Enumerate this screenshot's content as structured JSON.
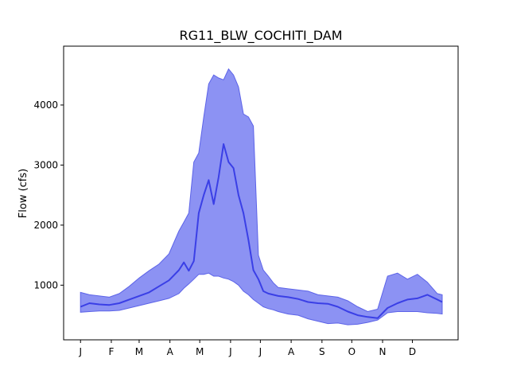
{
  "chart_data": {
    "type": "area",
    "title": "RG11_BLW_COCHITI_DAM",
    "xlabel": "",
    "ylabel": "Flow (cfs)",
    "x_tick_labels": [
      "J",
      "F",
      "M",
      "A",
      "M",
      "J",
      "J",
      "A",
      "S",
      "O",
      "N",
      "D"
    ],
    "x_tick_days": [
      1,
      32,
      60,
      91,
      121,
      152,
      182,
      213,
      244,
      274,
      305,
      335
    ],
    "y_ticks": [
      1000,
      2000,
      3000,
      4000
    ],
    "xlim": [
      -16,
      381
    ],
    "ylim": [
      90,
      4980
    ],
    "grid": false,
    "legend": "none",
    "colors": {
      "band": "#6b73f0",
      "band_edge": "#5c63e8",
      "line": "#3a3fe6"
    },
    "series": [
      {
        "role": "band",
        "x": [
          1,
          10,
          20,
          30,
          40,
          50,
          60,
          70,
          80,
          90,
          100,
          105,
          110,
          115,
          120,
          125,
          130,
          135,
          140,
          145,
          150,
          155,
          160,
          165,
          170,
          175,
          180,
          185,
          190,
          195,
          200,
          210,
          220,
          230,
          240,
          250,
          260,
          270,
          280,
          290,
          300,
          310,
          320,
          330,
          340,
          350,
          360,
          365
        ],
        "upper": [
          880,
          840,
          820,
          800,
          860,
          980,
          1120,
          1240,
          1350,
          1520,
          1900,
          2050,
          2200,
          3050,
          3200,
          3800,
          4350,
          4500,
          4450,
          4420,
          4600,
          4500,
          4300,
          3850,
          3800,
          3650,
          1500,
          1250,
          1150,
          1040,
          960,
          940,
          920,
          900,
          840,
          820,
          800,
          740,
          640,
          560,
          600,
          1150,
          1200,
          1100,
          1180,
          1050,
          860,
          840
        ],
        "lower": [
          550,
          560,
          570,
          570,
          580,
          620,
          660,
          700,
          740,
          780,
          860,
          950,
          1020,
          1100,
          1180,
          1180,
          1200,
          1150,
          1150,
          1120,
          1100,
          1060,
          1000,
          900,
          840,
          760,
          700,
          640,
          610,
          590,
          560,
          520,
          500,
          440,
          400,
          360,
          370,
          340,
          350,
          380,
          420,
          540,
          560,
          560,
          560,
          540,
          530,
          520
        ]
      },
      {
        "role": "median",
        "x": [
          1,
          10,
          20,
          30,
          40,
          50,
          60,
          70,
          80,
          90,
          100,
          105,
          110,
          115,
          120,
          125,
          130,
          135,
          140,
          145,
          150,
          155,
          160,
          165,
          170,
          175,
          180,
          185,
          190,
          195,
          200,
          210,
          220,
          230,
          240,
          250,
          260,
          270,
          280,
          290,
          300,
          310,
          320,
          330,
          340,
          350,
          360,
          365
        ],
        "y": [
          640,
          700,
          680,
          670,
          700,
          760,
          820,
          880,
          980,
          1080,
          1250,
          1380,
          1240,
          1400,
          2200,
          2500,
          2750,
          2350,
          2800,
          3350,
          3050,
          2950,
          2500,
          2200,
          1750,
          1250,
          1100,
          900,
          860,
          840,
          820,
          800,
          770,
          720,
          700,
          690,
          640,
          560,
          500,
          470,
          450,
          620,
          700,
          760,
          780,
          840,
          760,
          720
        ]
      }
    ]
  }
}
